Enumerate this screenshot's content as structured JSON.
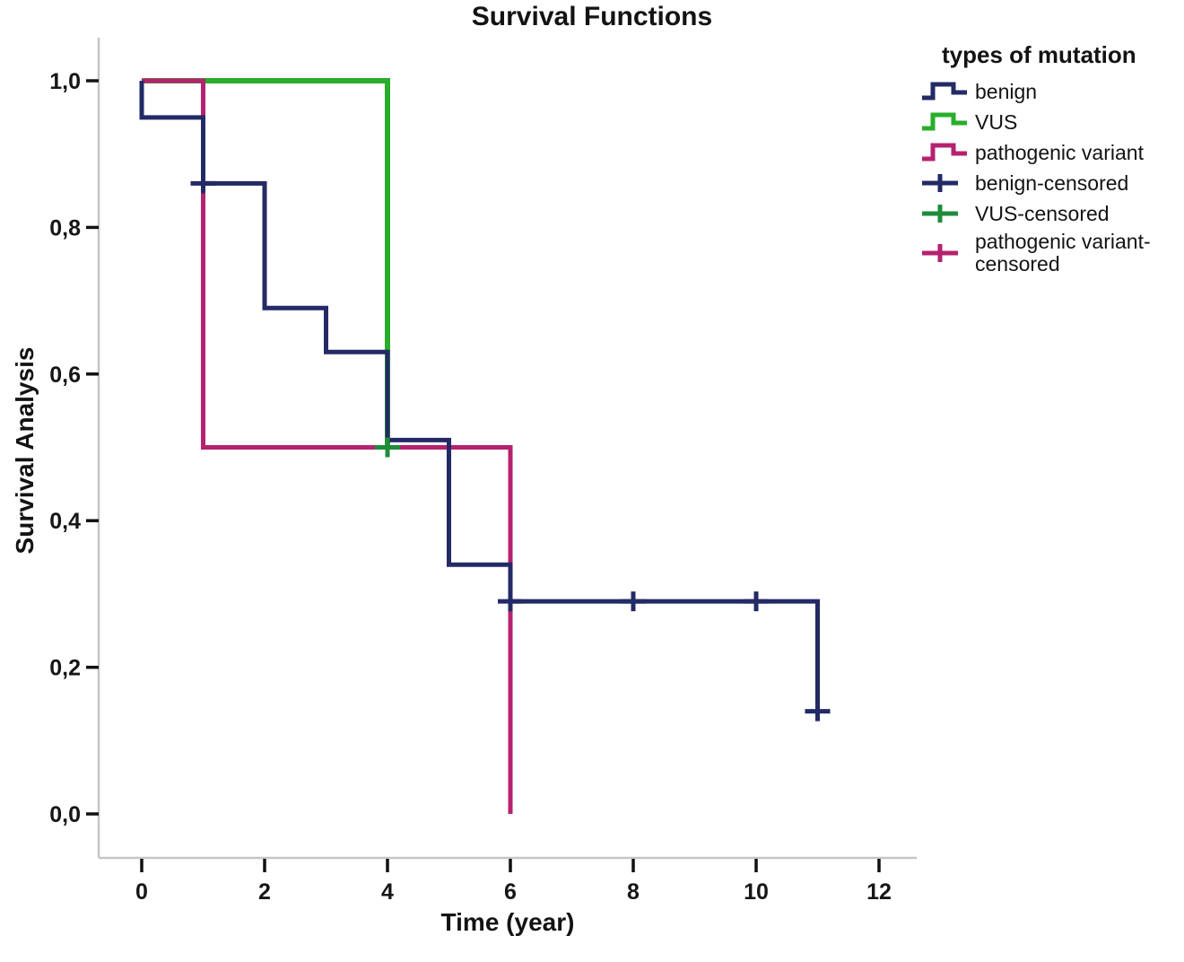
{
  "title": "Survival Functions",
  "axes": {
    "x": {
      "label": "Time (year)"
    },
    "y": {
      "label": "Survival Analysis"
    }
  },
  "legend": {
    "title": "types of mutation",
    "items": [
      {
        "label": "benign",
        "glyph": "step",
        "color": "#232a66"
      },
      {
        "label": "VUS",
        "glyph": "step",
        "color": "#29ad2b"
      },
      {
        "label": "pathogenic variant",
        "glyph": "step",
        "color": "#b5226e"
      },
      {
        "label": "benign-censored",
        "glyph": "plus",
        "color": "#232a66"
      },
      {
        "label": "VUS-censored",
        "glyph": "plus",
        "color": "#1f8c3a"
      },
      {
        "label": "pathogenic variant-censored",
        "glyph": "plus",
        "color": "#b5226e"
      }
    ]
  },
  "chart_data": {
    "type": "line",
    "variant": "kaplan_meier_step",
    "title": "Survival Functions",
    "xlabel": "Time (year)",
    "ylabel": "Survival Analysis",
    "xlim": [
      0,
      12
    ],
    "ylim": [
      0.0,
      1.0
    ],
    "grid": false,
    "legend_position": "right",
    "decimal_separator": ",",
    "x_ticks": [
      {
        "v": 0,
        "label": "0"
      },
      {
        "v": 2,
        "label": "2"
      },
      {
        "v": 4,
        "label": "4"
      },
      {
        "v": 6,
        "label": "6"
      },
      {
        "v": 8,
        "label": "8"
      },
      {
        "v": 10,
        "label": "10"
      },
      {
        "v": 12,
        "label": "12"
      }
    ],
    "y_ticks": [
      {
        "v": 0.0,
        "label": "0,0"
      },
      {
        "v": 0.2,
        "label": "0,2"
      },
      {
        "v": 0.4,
        "label": "0,4"
      },
      {
        "v": 0.6,
        "label": "0,6"
      },
      {
        "v": 0.8,
        "label": "0,8"
      },
      {
        "v": 1.0,
        "label": "1,0"
      }
    ],
    "series": [
      {
        "name": "benign",
        "color": "#232a66",
        "censor_color": "#232a66",
        "points": [
          [
            0,
            1.0
          ],
          [
            0,
            0.95
          ],
          [
            1,
            0.95
          ],
          [
            1,
            0.86
          ],
          [
            2,
            0.86
          ],
          [
            2,
            0.69
          ],
          [
            3,
            0.69
          ],
          [
            3,
            0.63
          ],
          [
            4,
            0.63
          ],
          [
            4,
            0.51
          ],
          [
            5,
            0.51
          ],
          [
            5,
            0.34
          ],
          [
            6,
            0.34
          ],
          [
            6,
            0.29
          ],
          [
            11,
            0.29
          ],
          [
            11,
            0.14
          ]
        ],
        "censored": [
          [
            1,
            0.86
          ],
          [
            6,
            0.29
          ],
          [
            8,
            0.29
          ],
          [
            10,
            0.29
          ],
          [
            11,
            0.14
          ]
        ]
      },
      {
        "name": "VUS",
        "color": "#29ad2b",
        "censor_color": "#1f8c3a",
        "points": [
          [
            0,
            1.0
          ],
          [
            4,
            1.0
          ],
          [
            4,
            0.5
          ]
        ],
        "censored": [
          [
            4,
            0.5
          ]
        ]
      },
      {
        "name": "pathogenic variant",
        "color": "#b5226e",
        "censor_color": "#b5226e",
        "points": [
          [
            0,
            1.0
          ],
          [
            1,
            1.0
          ],
          [
            1,
            0.5
          ],
          [
            6,
            0.5
          ],
          [
            6,
            0.0
          ]
        ],
        "censored": []
      }
    ],
    "draw_order": [
      1,
      2,
      0
    ]
  }
}
